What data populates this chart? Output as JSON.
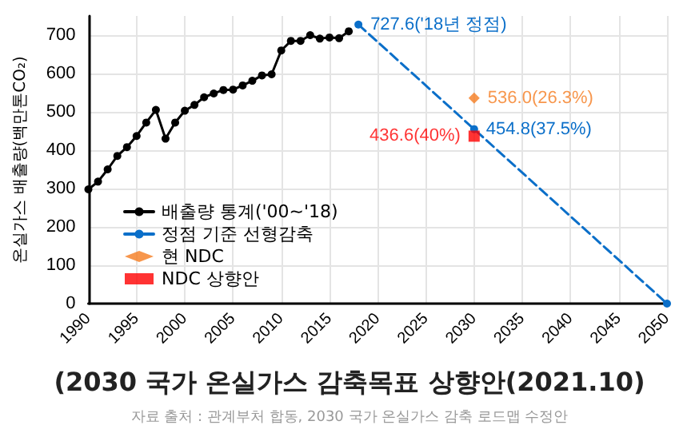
{
  "chart_data": {
    "type": "line",
    "title": "(2030 국가 온실가스 감축목표 상향안(2021.10)",
    "annotations": [
      "자료 출처 : 관계부처 합동, 2030 국가 온실가스 감축 로드맵 수정안"
    ],
    "ylabel": "온실가스 배출량(백만톤CO₂)",
    "xlim": [
      1990,
      2050
    ],
    "xticks": [
      1990,
      1995,
      2000,
      2005,
      2010,
      2015,
      2020,
      2025,
      2030,
      2035,
      2040,
      2045,
      2050
    ],
    "ylim": [
      0,
      750
    ],
    "yticks": [
      0,
      100,
      200,
      300,
      400,
      500,
      600,
      700
    ],
    "grid": true,
    "legend": "bottom left",
    "series": [
      {
        "name": "배출량 통계('00~'18)",
        "color": "#000000",
        "marker": "circle",
        "line_style": "solid",
        "x": [
          1990,
          1991,
          1992,
          1993,
          1994,
          1995,
          1996,
          1997,
          1998,
          1999,
          2000,
          2001,
          2002,
          2003,
          2004,
          2005,
          2006,
          2007,
          2008,
          2009,
          2010,
          2011,
          2012,
          2013,
          2014,
          2015,
          2016,
          2017
        ],
        "values": [
          298,
          318,
          350,
          385,
          408,
          437,
          472,
          505,
          430,
          472,
          503,
          518,
          538,
          548,
          557,
          558,
          569,
          581,
          595,
          598,
          660,
          685,
          685,
          700,
          691,
          694,
          692,
          710
        ]
      },
      {
        "name": "정점 기준 선형감축",
        "color": "#0b6fc9",
        "marker": "circle",
        "line_style": "dashed",
        "x": [
          2018,
          2030,
          2050
        ],
        "values": [
          727.6,
          454.8,
          0
        ],
        "value_labels": [
          "727.6('18년 정점)",
          "454.8(37.5%)",
          null
        ]
      },
      {
        "name": "현 NDC",
        "type": "scatter",
        "color": "#f57c1f",
        "marker": "diamond",
        "x": [
          2030
        ],
        "values": [
          536.0
        ],
        "value_labels": [
          "536.0(26.3%)"
        ]
      },
      {
        "name": "NDC 상향안",
        "type": "scatter",
        "color": "#ff0000",
        "marker": "square",
        "x": [
          2030
        ],
        "values": [
          436.6
        ],
        "value_labels": [
          "436.6(40%)"
        ]
      }
    ]
  }
}
